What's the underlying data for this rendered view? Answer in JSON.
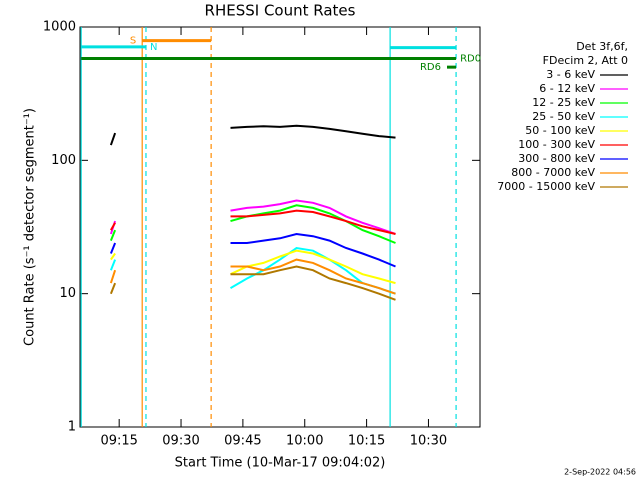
{
  "chart_data": {
    "type": "line",
    "title": "RHESSI Count Rates",
    "xlabel": "Start Time (10-Mar-17 09:04:02)",
    "ylabel": "Count Rate (s⁻¹ detector segment⁻¹)",
    "log_y": true,
    "xlim": [
      "09:05:30",
      "10:42:30"
    ],
    "xticks": [
      "09:15",
      "09:30",
      "09:45",
      "10:00",
      "10:15",
      "10:30"
    ],
    "ylim": [
      1,
      1000
    ],
    "yticks": [
      1,
      10,
      100,
      1000
    ],
    "legend_header": [
      "Det 3f,6f,",
      "FDecim 2, Att 0"
    ],
    "x": [
      "09:13",
      "09:14",
      "09:30",
      "09:42",
      "09:46",
      "09:50",
      "09:54",
      "09:58",
      "10:02",
      "10:06",
      "10:10",
      "10:14",
      "10:18",
      "10:22"
    ],
    "series": [
      {
        "name": "3 - 6 keV",
        "color": "#000000",
        "values": [
          130,
          160,
          null,
          175,
          178,
          180,
          178,
          182,
          178,
          172,
          165,
          158,
          152,
          148
        ]
      },
      {
        "name": "6 - 12 keV",
        "color": "#ff00ff",
        "values": [
          28,
          35,
          null,
          42,
          44,
          45,
          47,
          50,
          48,
          44,
          38,
          34,
          31,
          28
        ]
      },
      {
        "name": "12 - 25 keV",
        "color": "#00ff00",
        "values": [
          25,
          30,
          null,
          35,
          38,
          40,
          42,
          46,
          44,
          40,
          35,
          30,
          27,
          24
        ]
      },
      {
        "name": "25 - 50 keV",
        "color": "#00ffff",
        "values": [
          15,
          18,
          null,
          11,
          13,
          15,
          18,
          22,
          21,
          18,
          15,
          12,
          11,
          10
        ]
      },
      {
        "name": "50 - 100 keV",
        "color": "#ffff00",
        "values": [
          18,
          20,
          null,
          14,
          16,
          17,
          19,
          21,
          20,
          18,
          16,
          14,
          13,
          12
        ]
      },
      {
        "name": "100 - 300 keV",
        "color": "#ff0000",
        "values": [
          30,
          34,
          null,
          38,
          38,
          39,
          40,
          42,
          41,
          38,
          35,
          32,
          30,
          28
        ]
      },
      {
        "name": "300 - 800 keV",
        "color": "#0000ff",
        "values": [
          20,
          24,
          null,
          24,
          24,
          25,
          26,
          28,
          27,
          25,
          22,
          20,
          18,
          16
        ]
      },
      {
        "name": "800 - 7000 keV",
        "color": "#ff8c00",
        "values": [
          12,
          15,
          null,
          16,
          16,
          15,
          16,
          18,
          17,
          15,
          13,
          12,
          11,
          10
        ]
      },
      {
        "name": "7000 - 15000 keV",
        "color": "#b07800",
        "values": [
          10,
          12,
          null,
          14,
          14,
          14,
          15,
          16,
          15,
          13,
          12,
          11,
          10,
          9
        ]
      }
    ],
    "vlines": [
      {
        "time": "09:05:47",
        "color": "#00e0e0",
        "dashed": false
      },
      {
        "time": "09:20:35",
        "color": "#ff8c00",
        "dashed": false
      },
      {
        "time": "09:21:30",
        "color": "#00e0e0",
        "dashed": true
      },
      {
        "time": "09:37:18",
        "color": "#ff8c00",
        "dashed": true
      },
      {
        "time": "10:20:42",
        "color": "#00e0e0",
        "dashed": false
      },
      {
        "time": "10:36:42",
        "color": "#00e0e0",
        "dashed": true
      }
    ],
    "intervals": [
      {
        "label": "S",
        "start": "09:20:35",
        "end": "09:37:18",
        "level": 790,
        "color": "#ff8c00",
        "label_side": "left"
      },
      {
        "label": "N",
        "start": "09:05:47",
        "end": "09:21:30",
        "level": 710,
        "color": "#00e0e0",
        "label_side": "right"
      },
      {
        "start": "10:20:42",
        "end": "10:36:42",
        "level": 700,
        "color": "#00e0e0"
      },
      {
        "label": "RD0",
        "start": "09:05:47",
        "end": "10:36:42",
        "level": 580,
        "color": "#008000",
        "label_side": "right"
      },
      {
        "label": "RD6",
        "start": "10:34:30",
        "end": "10:36:42",
        "level": 500,
        "color": "#008000",
        "label_side": "left"
      }
    ],
    "footer": "2-Sep-2022 04:56"
  }
}
